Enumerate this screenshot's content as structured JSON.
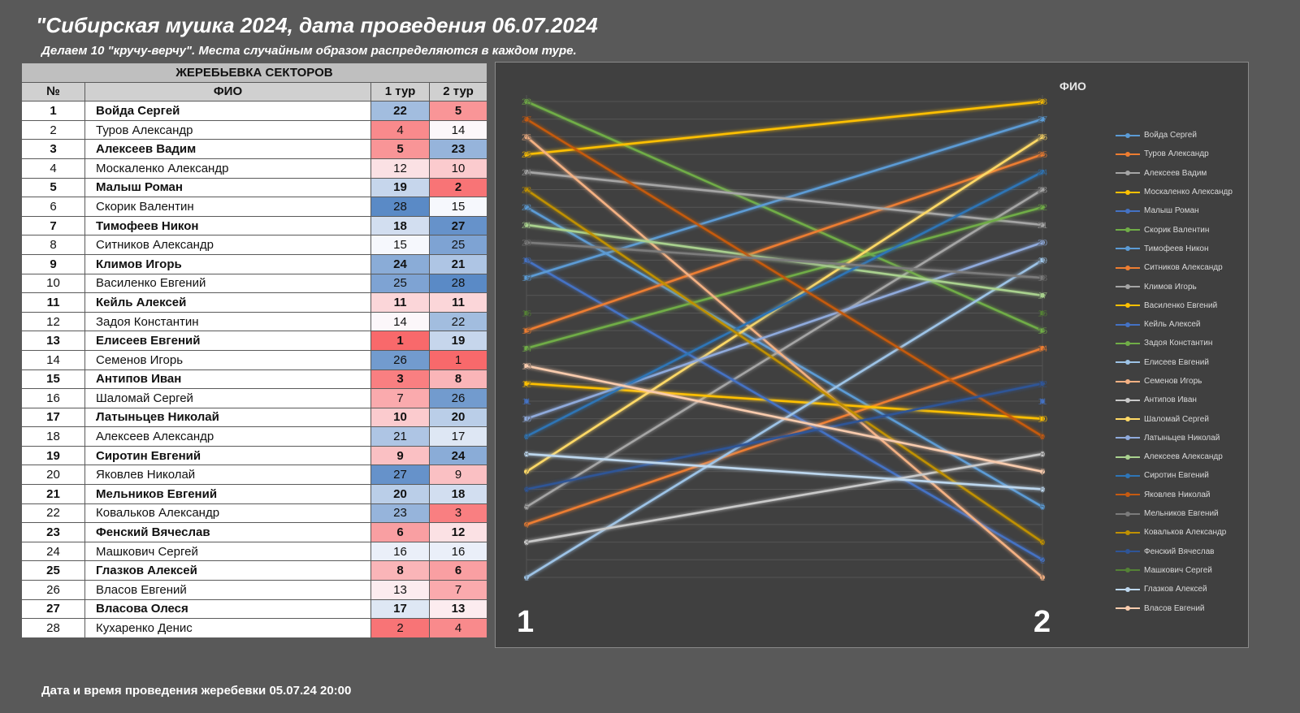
{
  "header": {
    "title": "\"Сибирская мушка 2024, дата проведения 06.07.2024",
    "subtitle": "Делаем 10 \"кручу-верчу\". Места случайным образом распределяются в каждом туре."
  },
  "table": {
    "group_header": "ЖЕРЕБЬЕВКА СЕКТОРОВ",
    "columns": [
      "№",
      "ФИО",
      "1 тур",
      "2 тур"
    ],
    "rows": [
      {
        "n": "1",
        "name": "Войда Сергей",
        "t1": "22",
        "t2": "5"
      },
      {
        "n": "2",
        "name": "Туров Александр",
        "t1": "4",
        "t2": "14"
      },
      {
        "n": "3",
        "name": "Алексеев Вадим",
        "t1": "5",
        "t2": "23"
      },
      {
        "n": "4",
        "name": "Москаленко Александр",
        "t1": "12",
        "t2": "10"
      },
      {
        "n": "5",
        "name": "Малыш Роман",
        "t1": "19",
        "t2": "2"
      },
      {
        "n": "6",
        "name": "Скорик Валентин",
        "t1": "28",
        "t2": "15"
      },
      {
        "n": "7",
        "name": "Тимофеев Никон",
        "t1": "18",
        "t2": "27"
      },
      {
        "n": "8",
        "name": "Ситников Александр",
        "t1": "15",
        "t2": "25"
      },
      {
        "n": "9",
        "name": "Климов Игорь",
        "t1": "24",
        "t2": "21"
      },
      {
        "n": "10",
        "name": "Василенко Евгений",
        "t1": "25",
        "t2": "28"
      },
      {
        "n": "11",
        "name": "Кейль Алексей",
        "t1": "11",
        "t2": "11"
      },
      {
        "n": "12",
        "name": "Задоя Константин",
        "t1": "14",
        "t2": "22"
      },
      {
        "n": "13",
        "name": "Елисеев Евгений",
        "t1": "1",
        "t2": "19"
      },
      {
        "n": "14",
        "name": "Семенов Игорь",
        "t1": "26",
        "t2": "1"
      },
      {
        "n": "15",
        "name": "Антипов Иван",
        "t1": "3",
        "t2": "8"
      },
      {
        "n": "16",
        "name": "Шаломай Сергей",
        "t1": "7",
        "t2": "26"
      },
      {
        "n": "17",
        "name": "Латыньцев Николай",
        "t1": "10",
        "t2": "20"
      },
      {
        "n": "18",
        "name": "Алексеев Александр",
        "t1": "21",
        "t2": "17"
      },
      {
        "n": "19",
        "name": "Сиротин Евгений",
        "t1": "9",
        "t2": "24"
      },
      {
        "n": "20",
        "name": "Яковлев Николай",
        "t1": "27",
        "t2": "9"
      },
      {
        "n": "21",
        "name": "Мельников Евгений",
        "t1": "20",
        "t2": "18"
      },
      {
        "n": "22",
        "name": "Ковальков Александр",
        "t1": "23",
        "t2": "3"
      },
      {
        "n": "23",
        "name": "Фенский Вячеслав",
        "t1": "6",
        "t2": "12"
      },
      {
        "n": "24",
        "name": "Машкович Сергей",
        "t1": "16",
        "t2": "16"
      },
      {
        "n": "25",
        "name": "Глазков Алексей",
        "t1": "8",
        "t2": "6"
      },
      {
        "n": "26",
        "name": "Власов Евгений",
        "t1": "13",
        "t2": "7"
      },
      {
        "n": "27",
        "name": "Власова Олеся",
        "t1": "17",
        "t2": "13"
      },
      {
        "n": "28",
        "name": "Кухаренко Денис",
        "t1": "2",
        "t2": "4"
      }
    ]
  },
  "footer": {
    "note": "Дата и время проведения жеребевки 05.07.24 20:00"
  },
  "colors": {
    "low": "#f8696b",
    "mid": "#fcfcff",
    "high": "#5a8ac6",
    "palette": [
      "#5b9bd5",
      "#ed7d31",
      "#a5a5a5",
      "#ffc000",
      "#4472c4",
      "#70ad47",
      "#5b9bd5",
      "#ed7d31",
      "#a5a5a5",
      "#ffc000",
      "#4472c4",
      "#70ad47",
      "#9dc3e6",
      "#f4b183",
      "#c9c9c9",
      "#ffd966",
      "#8faadc",
      "#a9d18e",
      "#2e75b6",
      "#c55a11",
      "#7b7b7b",
      "#bf9000",
      "#2f5597",
      "#548235",
      "#bdd7ee",
      "#f8cbad"
    ]
  },
  "chart_data": {
    "type": "line",
    "title": "",
    "legend_title": "ФИО",
    "categories": [
      "1",
      "2"
    ],
    "xlabel": "",
    "ylabel": "",
    "ylim": [
      1,
      28
    ],
    "y_ticks": [
      1,
      2,
      3,
      4,
      5,
      6,
      7,
      8,
      9,
      10,
      11,
      12,
      13,
      14,
      15,
      16,
      17,
      18,
      19,
      20,
      21,
      22,
      23,
      24,
      25,
      26,
      27,
      28
    ],
    "grid": true,
    "legend_position": "right",
    "series": [
      {
        "name": "Войда Сергей",
        "values": [
          22,
          5
        ]
      },
      {
        "name": "Туров Александр",
        "values": [
          4,
          14
        ]
      },
      {
        "name": "Алексеев Вадим",
        "values": [
          5,
          23
        ]
      },
      {
        "name": "Москаленко Александр",
        "values": [
          12,
          10
        ]
      },
      {
        "name": "Малыш Роман",
        "values": [
          19,
          2
        ]
      },
      {
        "name": "Скорик Валентин",
        "values": [
          28,
          15
        ]
      },
      {
        "name": "Тимофеев Никон",
        "values": [
          18,
          27
        ]
      },
      {
        "name": "Ситников Александр",
        "values": [
          15,
          25
        ]
      },
      {
        "name": "Климов Игорь",
        "values": [
          24,
          21
        ]
      },
      {
        "name": "Василенко Евгений",
        "values": [
          25,
          28
        ]
      },
      {
        "name": "Кейль Алексей",
        "values": [
          11,
          11
        ]
      },
      {
        "name": "Задоя Константин",
        "values": [
          14,
          22
        ]
      },
      {
        "name": "Елисеев Евгений",
        "values": [
          1,
          19
        ]
      },
      {
        "name": "Семенов Игорь",
        "values": [
          26,
          1
        ]
      },
      {
        "name": "Антипов Иван",
        "values": [
          3,
          8
        ]
      },
      {
        "name": "Шаломай Сергей",
        "values": [
          7,
          26
        ]
      },
      {
        "name": "Латыньцев Николай",
        "values": [
          10,
          20
        ]
      },
      {
        "name": "Алексеев Александр",
        "values": [
          21,
          17
        ]
      },
      {
        "name": "Сиротин Евгений",
        "values": [
          9,
          24
        ]
      },
      {
        "name": "Яковлев Николай",
        "values": [
          27,
          9
        ]
      },
      {
        "name": "Мельников Евгений",
        "values": [
          20,
          18
        ]
      },
      {
        "name": "Ковальков Александр",
        "values": [
          23,
          3
        ]
      },
      {
        "name": "Фенский Вячеслав",
        "values": [
          6,
          12
        ]
      },
      {
        "name": "Машкович Сергей",
        "values": [
          16,
          16
        ]
      },
      {
        "name": "Глазков Алексей",
        "values": [
          8,
          6
        ]
      },
      {
        "name": "Власов Евгений",
        "values": [
          13,
          7
        ]
      }
    ]
  }
}
